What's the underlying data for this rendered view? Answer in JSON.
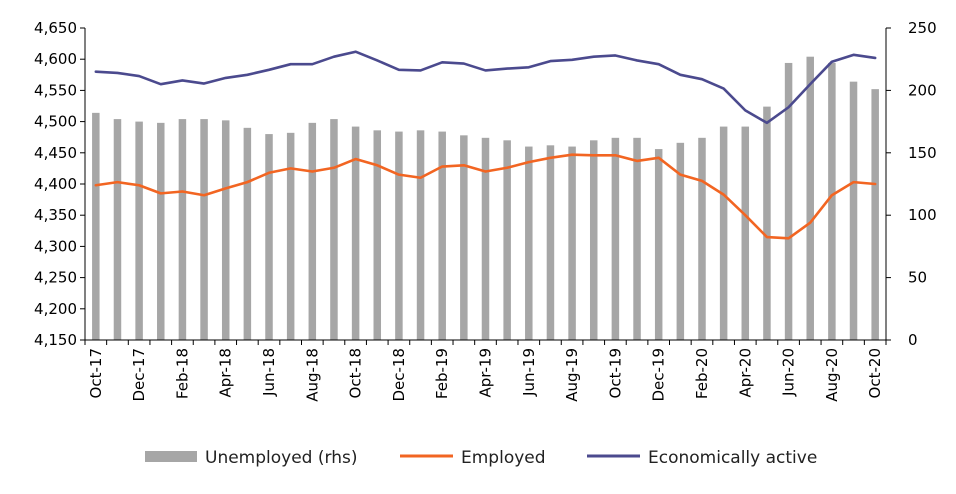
{
  "chart_data": {
    "type": "bar+line",
    "categories": [
      "Oct-17",
      "Nov-17",
      "Dec-17",
      "Jan-18",
      "Feb-18",
      "Mar-18",
      "Apr-18",
      "May-18",
      "Jun-18",
      "Jul-18",
      "Aug-18",
      "Sep-18",
      "Oct-18",
      "Nov-18",
      "Dec-18",
      "Jan-19",
      "Feb-19",
      "Mar-19",
      "Apr-19",
      "May-19",
      "Jun-19",
      "Jul-19",
      "Aug-19",
      "Sep-19",
      "Oct-19",
      "Nov-19",
      "Dec-19",
      "Jan-20",
      "Feb-20",
      "Mar-20",
      "Apr-20",
      "May-20",
      "Jun-20",
      "Jul-20",
      "Aug-20",
      "Sep-20",
      "Oct-20"
    ],
    "x_tick_labels": [
      "Oct-17",
      "Dec-17",
      "Feb-18",
      "Apr-18",
      "Jun-18",
      "Aug-18",
      "Oct-18",
      "Dec-18",
      "Feb-19",
      "Apr-19",
      "Jun-19",
      "Aug-19",
      "Oct-19",
      "Dec-19",
      "Feb-20",
      "Apr-20",
      "Jun-20",
      "Aug-20",
      "Oct-20"
    ],
    "y_left": {
      "min": 4150,
      "max": 4650,
      "ticks": [
        "4,150",
        "4,200",
        "4,250",
        "4,300",
        "4,350",
        "4,400",
        "4,450",
        "4,500",
        "4,550",
        "4,600",
        "4,650"
      ]
    },
    "y_right": {
      "min": 0,
      "max": 250,
      "ticks": [
        "0",
        "50",
        "100",
        "150",
        "200",
        "250"
      ]
    },
    "grid": false,
    "legend_position": "bottom",
    "series": [
      {
        "name": "Unemployed (rhs)",
        "kind": "bar",
        "axis": "right",
        "color": "#a6a6a6",
        "values": [
          182,
          177,
          175,
          174,
          177,
          177,
          176,
          170,
          165,
          166,
          174,
          177,
          171,
          168,
          167,
          168,
          167,
          164,
          162,
          160,
          155,
          156,
          155,
          160,
          162,
          162,
          153,
          158,
          162,
          171,
          171,
          187,
          222,
          227,
          222,
          207,
          201
        ]
      },
      {
        "name": "Employed",
        "kind": "line",
        "axis": "left",
        "color": "#f26522",
        "values": [
          4398,
          4403,
          4398,
          4385,
          4388,
          4382,
          4393,
          4403,
          4418,
          4425,
          4420,
          4426,
          4440,
          4430,
          4415,
          4410,
          4428,
          4430,
          4420,
          4426,
          4435,
          4442,
          4447,
          4446,
          4446,
          4437,
          4442,
          4415,
          4405,
          4383,
          4350,
          4315,
          4313,
          4338,
          4382,
          4403,
          4400
        ]
      },
      {
        "name": "Economically active",
        "kind": "line",
        "axis": "left",
        "color": "#4b4a8e",
        "values": [
          4580,
          4578,
          4573,
          4560,
          4566,
          4561,
          4570,
          4575,
          4583,
          4592,
          4592,
          4604,
          4612,
          4598,
          4583,
          4582,
          4595,
          4593,
          4582,
          4585,
          4587,
          4597,
          4599,
          4604,
          4606,
          4598,
          4592,
          4575,
          4568,
          4553,
          4518,
          4498,
          4523,
          4560,
          4596,
          4607,
          4602
        ]
      }
    ]
  }
}
